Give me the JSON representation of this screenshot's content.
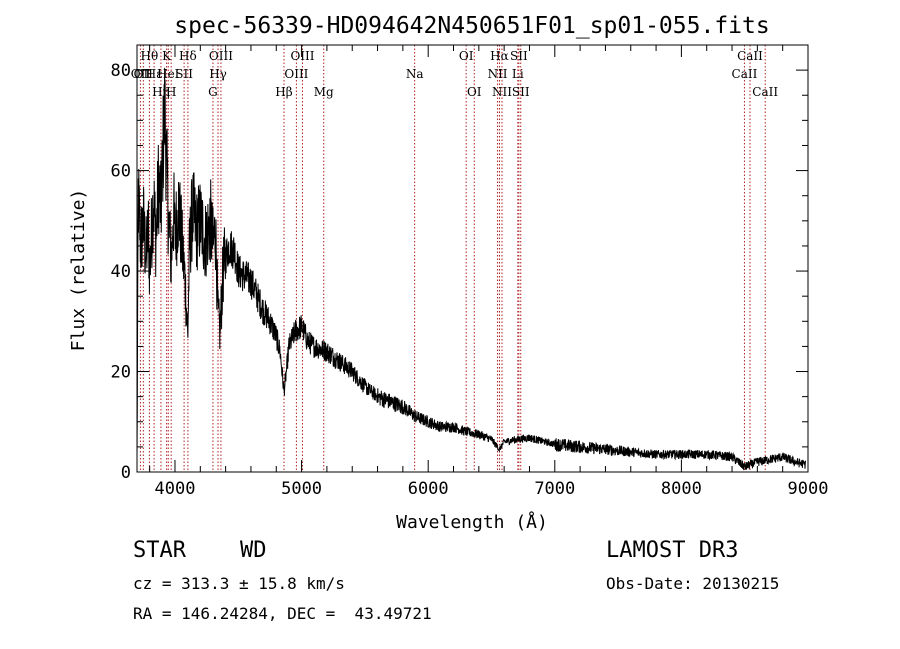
{
  "chart_data": {
    "type": "line",
    "title": "spec-56339-HD094642N450651F01_sp01-055.fits",
    "xlabel": "Wavelength (Å)",
    "ylabel": "Flux (relative)",
    "xlim": [
      3700,
      9000
    ],
    "ylim": [
      0,
      85
    ],
    "xticks": [
      4000,
      5000,
      6000,
      7000,
      8000,
      9000
    ],
    "yticks": [
      0,
      20,
      40,
      60,
      80
    ],
    "xtick_labels": [
      "4000",
      "5000",
      "6000",
      "7000",
      "8000",
      "9000"
    ],
    "ytick_labels": [
      "0",
      "20",
      "40",
      "60",
      "80"
    ],
    "spectrum_anchors": {
      "x": [
        3700,
        3710,
        3730,
        3750,
        3770,
        3790,
        3800,
        3830,
        3850,
        3870,
        3890,
        3910,
        3920,
        3935,
        3950,
        3970,
        3990,
        4000,
        4030,
        4060,
        4080,
        4101,
        4115,
        4140,
        4170,
        4200,
        4240,
        4280,
        4300,
        4320,
        4340,
        4355,
        4380,
        4400,
        4430,
        4470,
        4500,
        4550,
        4600,
        4650,
        4700,
        4750,
        4800,
        4830,
        4861,
        4880,
        4900,
        4950,
        5000,
        5050,
        5100,
        5200,
        5300,
        5400,
        5500,
        5600,
        5700,
        5800,
        5900,
        6000,
        6100,
        6200,
        6300,
        6400,
        6500,
        6563,
        6600,
        6700,
        6800,
        7000,
        7200,
        7400,
        7600,
        7800,
        8000,
        8200,
        8400,
        8500,
        8600,
        8700,
        8800,
        8900,
        8980
      ],
      "y": [
        3,
        55,
        45,
        50,
        43,
        48,
        40,
        55,
        46,
        58,
        52,
        68,
        72,
        60,
        50,
        42,
        52,
        47,
        53,
        44,
        38,
        27,
        45,
        52,
        48,
        50,
        46,
        50,
        45,
        48,
        31,
        28,
        40,
        43,
        45,
        44,
        40,
        39,
        38,
        35,
        32,
        30,
        27,
        24,
        16,
        20,
        25,
        28,
        29,
        26,
        25,
        24,
        22,
        20,
        17,
        15,
        14,
        13,
        11,
        10,
        9,
        9,
        8,
        7.5,
        6.5,
        4.5,
        6,
        6.5,
        6.8,
        5.5,
        5,
        4.5,
        4,
        3.5,
        3.5,
        3.5,
        3,
        1,
        2,
        2.5,
        3,
        2,
        1.5
      ]
    },
    "lines": [
      {
        "wl": 3727,
        "top": "OII",
        "row": 1,
        "label": "OII"
      },
      {
        "wl": 3750,
        "row": 1,
        "label": "OII"
      },
      {
        "wl": 3798,
        "row": 0,
        "label": "Hθ"
      },
      {
        "wl": 3835,
        "row": 1,
        "label": "Hε"
      },
      {
        "wl": 3889,
        "row": 2,
        "label": "Hη"
      },
      {
        "wl": 3934,
        "row": 0,
        "label": "K"
      },
      {
        "wl": 3970,
        "row": 2,
        "label": "H"
      },
      {
        "wl": 3947,
        "row": 1,
        "label": "HeI"
      },
      {
        "wl": 4072,
        "row": 1,
        "label": "SII"
      },
      {
        "wl": 4102,
        "row": 0,
        "label": "Hδ"
      },
      {
        "wl": 4300,
        "row": 2,
        "label": "G"
      },
      {
        "wl": 4340,
        "row": 1,
        "label": "Hγ"
      },
      {
        "wl": 4363,
        "row": 0,
        "label": "OIII"
      },
      {
        "wl": 4861,
        "row": 2,
        "label": "Hβ"
      },
      {
        "wl": 4959,
        "row": 1,
        "label": "OIII"
      },
      {
        "wl": 5007,
        "row": 0,
        "label": "OIII"
      },
      {
        "wl": 5175,
        "row": 2,
        "label": "Mg"
      },
      {
        "wl": 5893,
        "row": 1,
        "label": "Na"
      },
      {
        "wl": 6300,
        "row": 0,
        "label": "OI"
      },
      {
        "wl": 6364,
        "row": 2,
        "label": "OI"
      },
      {
        "wl": 6548,
        "row": 1,
        "label": "NII"
      },
      {
        "wl": 6563,
        "row": 0,
        "label": "Hα"
      },
      {
        "wl": 6583,
        "row": 2,
        "label": "NII"
      },
      {
        "wl": 6708,
        "row": 1,
        "label": "Li"
      },
      {
        "wl": 6716,
        "row": 0,
        "label": "SII"
      },
      {
        "wl": 6731,
        "row": 2,
        "label": "SII"
      },
      {
        "wl": 8498,
        "row": 1,
        "label": "CaII"
      },
      {
        "wl": 8542,
        "row": 0,
        "label": "CaII"
      },
      {
        "wl": 8662,
        "row": 2,
        "label": "CaII"
      }
    ]
  },
  "info": {
    "object_class": "STAR",
    "subclass": "WD",
    "survey": "LAMOST DR3",
    "cz": "cz = 313.3 ± 15.8 km/s",
    "obs_date": "Obs-Date: 20130215",
    "coords": "RA = 146.24284, DEC =  43.49721"
  },
  "colors": {
    "line_marker": "#b22222",
    "spectrum": "#000000"
  }
}
